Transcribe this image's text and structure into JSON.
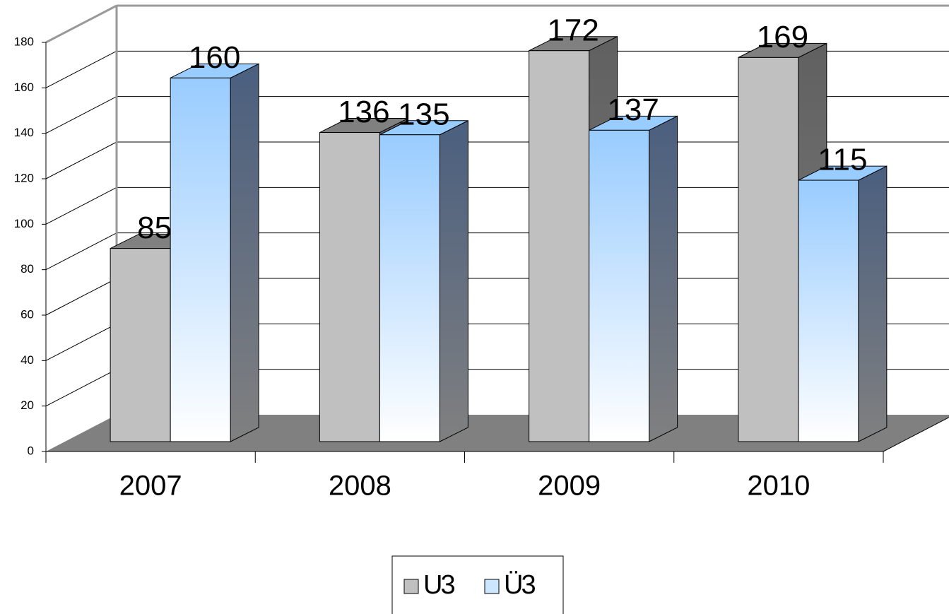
{
  "chart_data": {
    "type": "bar3d",
    "categories": [
      "2007",
      "2008",
      "2009",
      "2010"
    ],
    "series": [
      {
        "name": "U3",
        "color": "#c0c0c0",
        "values": [
          85,
          136,
          172,
          169
        ]
      },
      {
        "name": "Ü3",
        "color": "#99ccff",
        "values": [
          160,
          135,
          137,
          115
        ]
      }
    ],
    "ylim": [
      0,
      180
    ],
    "yticks": [
      0,
      20,
      40,
      60,
      80,
      100,
      120,
      140,
      160,
      180
    ],
    "grid": true,
    "legend": "bottom",
    "data_labels": true
  }
}
